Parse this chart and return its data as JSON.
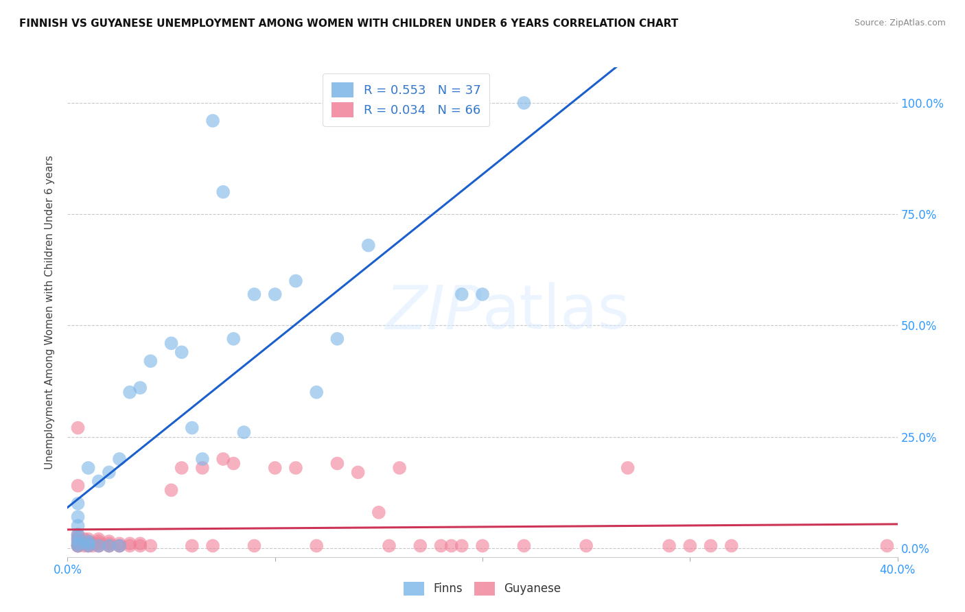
{
  "title": "FINNISH VS GUYANESE UNEMPLOYMENT AMONG WOMEN WITH CHILDREN UNDER 6 YEARS CORRELATION CHART",
  "source": "Source: ZipAtlas.com",
  "ylabel": "Unemployment Among Women with Children Under 6 years",
  "ytick_labels": [
    "0.0%",
    "25.0%",
    "50.0%",
    "75.0%",
    "100.0%"
  ],
  "ytick_values": [
    0.0,
    0.25,
    0.5,
    0.75,
    1.0
  ],
  "xlim": [
    0.0,
    0.4
  ],
  "ylim": [
    -0.02,
    1.08
  ],
  "xtick_vals": [
    0.0,
    0.1,
    0.2,
    0.3,
    0.4
  ],
  "xtick_labels_show": [
    "0.0%",
    "",
    "",
    "",
    "40.0%"
  ],
  "legend_entries": [
    {
      "label": "R = 0.553   N = 37",
      "color": "#a8c8f0"
    },
    {
      "label": "R = 0.034   N = 66",
      "color": "#f0a8b8"
    }
  ],
  "legend_bottom": [
    "Finns",
    "Guyanese"
  ],
  "color_finns": "#7ab4e8",
  "color_guyanese": "#f08098",
  "trendline_finns_color": "#1a5fcc",
  "trendline_guyanese_color": "#cc3355",
  "background_color": "#ffffff",
  "grid_color": "#c8c8c8",
  "watermark": "ZIPatlas",
  "finns_x": [
    0.005,
    0.005,
    0.005,
    0.005,
    0.005,
    0.005,
    0.005,
    0.01,
    0.01,
    0.01,
    0.01,
    0.015,
    0.015,
    0.02,
    0.02,
    0.025,
    0.025,
    0.03,
    0.035,
    0.04,
    0.05,
    0.055,
    0.06,
    0.065,
    0.07,
    0.075,
    0.08,
    0.085,
    0.09,
    0.1,
    0.11,
    0.12,
    0.13,
    0.145,
    0.19,
    0.2,
    0.22
  ],
  "finns_y": [
    0.005,
    0.01,
    0.02,
    0.03,
    0.05,
    0.07,
    0.1,
    0.005,
    0.01,
    0.015,
    0.18,
    0.005,
    0.15,
    0.005,
    0.17,
    0.005,
    0.2,
    0.35,
    0.36,
    0.42,
    0.46,
    0.44,
    0.27,
    0.2,
    0.96,
    0.8,
    0.47,
    0.26,
    0.57,
    0.57,
    0.6,
    0.35,
    0.47,
    0.68,
    0.57,
    0.57,
    1.0
  ],
  "guyanese_x": [
    0.005,
    0.005,
    0.005,
    0.005,
    0.005,
    0.005,
    0.005,
    0.005,
    0.005,
    0.005,
    0.008,
    0.008,
    0.008,
    0.01,
    0.01,
    0.01,
    0.01,
    0.01,
    0.012,
    0.012,
    0.015,
    0.015,
    0.015,
    0.015,
    0.015,
    0.02,
    0.02,
    0.02,
    0.02,
    0.025,
    0.025,
    0.025,
    0.03,
    0.03,
    0.035,
    0.035,
    0.04,
    0.05,
    0.055,
    0.06,
    0.065,
    0.07,
    0.075,
    0.08,
    0.09,
    0.1,
    0.11,
    0.12,
    0.13,
    0.14,
    0.15,
    0.155,
    0.16,
    0.17,
    0.18,
    0.185,
    0.19,
    0.2,
    0.22,
    0.25,
    0.27,
    0.29,
    0.3,
    0.31,
    0.32,
    0.395
  ],
  "guyanese_y": [
    0.005,
    0.005,
    0.005,
    0.01,
    0.015,
    0.02,
    0.025,
    0.03,
    0.14,
    0.27,
    0.005,
    0.01,
    0.02,
    0.005,
    0.005,
    0.01,
    0.015,
    0.02,
    0.005,
    0.01,
    0.005,
    0.005,
    0.01,
    0.015,
    0.02,
    0.005,
    0.005,
    0.01,
    0.015,
    0.005,
    0.005,
    0.01,
    0.005,
    0.01,
    0.005,
    0.01,
    0.005,
    0.13,
    0.18,
    0.005,
    0.18,
    0.005,
    0.2,
    0.19,
    0.005,
    0.18,
    0.18,
    0.005,
    0.19,
    0.17,
    0.08,
    0.005,
    0.18,
    0.005,
    0.005,
    0.005,
    0.005,
    0.005,
    0.005,
    0.005,
    0.18,
    0.005,
    0.005,
    0.005,
    0.005,
    0.005
  ]
}
